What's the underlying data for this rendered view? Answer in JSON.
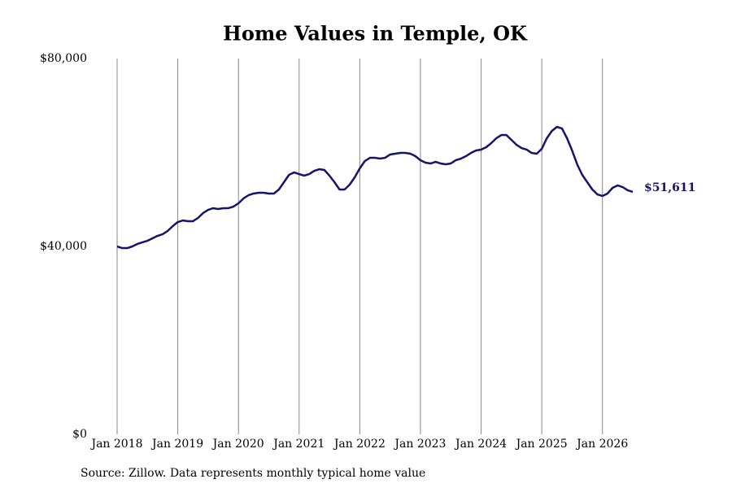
{
  "chart_data": {
    "type": "line",
    "title": "Home Values in Temple, OK",
    "source": "Source: Zillow. Data represents monthly typical home value",
    "categories": [
      "Jan 2018",
      null,
      null,
      null,
      null,
      null,
      null,
      null,
      null,
      null,
      null,
      null,
      "Jan 2019",
      null,
      null,
      null,
      null,
      null,
      null,
      null,
      null,
      null,
      null,
      null,
      "Jan 2020",
      null,
      null,
      null,
      null,
      null,
      null,
      null,
      null,
      null,
      null,
      null,
      "Jan 2021",
      null,
      null,
      null,
      null,
      null,
      null,
      null,
      null,
      null,
      null,
      null,
      "Jan 2022",
      null,
      null,
      null,
      null,
      null,
      null,
      null,
      null,
      null,
      null,
      null,
      "Jan 2023",
      null,
      null,
      null,
      null,
      null,
      null,
      null,
      null,
      null,
      null,
      null,
      "Jan 2024",
      null,
      null,
      null,
      null,
      null,
      null,
      null,
      null,
      null,
      null,
      null,
      "Jan 2025",
      null,
      null,
      null,
      null,
      null,
      null,
      null,
      null,
      null,
      null,
      null,
      "Jan 2026",
      null,
      null,
      null,
      null,
      null,
      null
    ],
    "series": [
      {
        "name": "Home value",
        "color": "#15146b",
        "values": [
          40000,
          39650,
          39650,
          40000,
          40520,
          40870,
          41210,
          41730,
          42250,
          42600,
          43290,
          44330,
          45190,
          45540,
          45370,
          45370,
          46060,
          47100,
          47790,
          48140,
          47970,
          48140,
          48140,
          48480,
          49180,
          50220,
          50910,
          51260,
          51430,
          51430,
          51260,
          51260,
          52120,
          53680,
          55240,
          55760,
          55410,
          55070,
          55410,
          56100,
          56450,
          56280,
          55070,
          53680,
          52120,
          52120,
          53160,
          54720,
          56620,
          58180,
          58870,
          58870,
          58700,
          58870,
          59570,
          59740,
          59910,
          59910,
          59740,
          59220,
          58360,
          57840,
          57660,
          58010,
          57660,
          57490,
          57660,
          58360,
          58700,
          59220,
          59910,
          60430,
          60610,
          61130,
          61990,
          63030,
          63720,
          63720,
          62680,
          61640,
          60950,
          60610,
          59910,
          59740,
          60780,
          63030,
          64590,
          65450,
          65110,
          63030,
          60430,
          57490,
          55240,
          53680,
          52120,
          51080,
          50740,
          51260,
          52470,
          52990,
          52640,
          51950,
          51611
        ],
        "value_labels": [
          null,
          null,
          null,
          null,
          null,
          null,
          null,
          null,
          null,
          null,
          null,
          null,
          null,
          null,
          null,
          null,
          null,
          null,
          null,
          null,
          null,
          null,
          null,
          null,
          null,
          null,
          null,
          null,
          null,
          null,
          null,
          null,
          null,
          null,
          null,
          null,
          null,
          null,
          null,
          null,
          null,
          null,
          null,
          null,
          null,
          null,
          null,
          null,
          null,
          null,
          null,
          null,
          null,
          null,
          null,
          null,
          null,
          null,
          null,
          null,
          null,
          null,
          null,
          null,
          null,
          null,
          null,
          null,
          null,
          null,
          null,
          null,
          null,
          null,
          null,
          null,
          null,
          null,
          null,
          null,
          null,
          null,
          null,
          null,
          null,
          null,
          null,
          null,
          null,
          null,
          null,
          null,
          null,
          null,
          null,
          null,
          null,
          null,
          null,
          null,
          null,
          null,
          "$51,611"
        ]
      }
    ],
    "ylim": [
      0,
      80000
    ],
    "yticks": [
      {
        "value": 0,
        "label": "$0"
      },
      {
        "value": 40000,
        "label": "$40,000"
      },
      {
        "value": 80000,
        "label": "$80,000"
      }
    ],
    "grid": true
  }
}
